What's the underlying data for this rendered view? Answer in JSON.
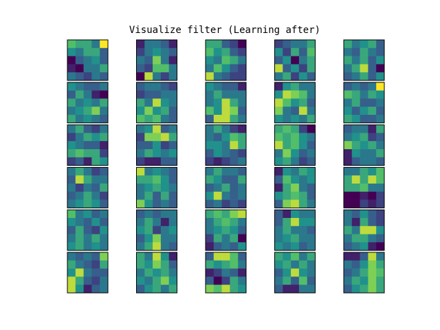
{
  "figure": {
    "title": "Visualize filter (Learning after)"
  },
  "chart_data": {
    "type": "heatmap",
    "title": "Visualize filter (Learning after)",
    "colormap": "viridis",
    "colormap_stops": [
      "#440154",
      "#3b528b",
      "#21918c",
      "#5ec962",
      "#fde725"
    ],
    "grid_shape": [
      6,
      5
    ],
    "filter_shape": [
      5,
      5
    ],
    "value_range": [
      0,
      1
    ],
    "axes_visible": false,
    "filters": [
      [
        [
          0.7,
          0.6,
          0.6,
          0.4,
          1.0
        ],
        [
          0.5,
          0.4,
          0.6,
          0.6,
          0.3
        ],
        [
          0.0,
          0.3,
          0.4,
          0.5,
          0.3
        ],
        [
          0.1,
          0.0,
          0.4,
          0.4,
          0.6
        ],
        [
          0.4,
          0.3,
          0.2,
          0.4,
          0.3
        ]
      ],
      [
        [
          0.1,
          0.4,
          0.4,
          0.3,
          0.1
        ],
        [
          0.2,
          0.4,
          0.5,
          0.4,
          0.3
        ],
        [
          0.4,
          0.3,
          0.8,
          0.4,
          0.1
        ],
        [
          0.3,
          0.2,
          0.7,
          0.7,
          0.4
        ],
        [
          0.0,
          0.9,
          0.4,
          0.2,
          0.4
        ]
      ],
      [
        [
          0.6,
          0.6,
          0.3,
          0.2,
          0.0
        ],
        [
          0.7,
          0.5,
          0.6,
          0.3,
          0.2
        ],
        [
          0.5,
          0.4,
          0.7,
          0.6,
          0.4
        ],
        [
          0.4,
          0.7,
          0.5,
          0.3,
          0.2
        ],
        [
          0.9,
          0.4,
          0.3,
          0.2,
          0.2
        ]
      ],
      [
        [
          0.2,
          0.3,
          0.4,
          0.4,
          0.6
        ],
        [
          0.5,
          0.2,
          0.6,
          0.3,
          0.7
        ],
        [
          0.3,
          0.5,
          0.0,
          0.4,
          0.6
        ],
        [
          0.9,
          0.3,
          0.5,
          0.2,
          0.6
        ],
        [
          0.4,
          0.6,
          0.2,
          0.5,
          0.3
        ]
      ],
      [
        [
          0.6,
          0.4,
          0.5,
          0.6,
          0.3
        ],
        [
          0.4,
          0.3,
          0.6,
          0.4,
          0.3
        ],
        [
          0.6,
          0.4,
          0.6,
          0.3,
          0.5
        ],
        [
          0.4,
          0.6,
          0.9,
          0.3,
          0.0
        ],
        [
          0.3,
          0.4,
          0.6,
          0.3,
          0.5
        ]
      ],
      [
        [
          0.5,
          0.4,
          0.3,
          0.3,
          0.4
        ],
        [
          0.3,
          0.6,
          0.4,
          0.1,
          0.0
        ],
        [
          0.6,
          0.4,
          0.5,
          0.4,
          0.6
        ],
        [
          0.4,
          0.5,
          0.6,
          0.8,
          0.4
        ],
        [
          0.6,
          0.4,
          0.5,
          0.4,
          0.3
        ]
      ],
      [
        [
          0.3,
          0.4,
          0.4,
          0.3,
          0.2
        ],
        [
          0.2,
          0.3,
          0.3,
          0.4,
          0.4
        ],
        [
          0.6,
          0.4,
          0.9,
          0.5,
          0.4
        ],
        [
          0.5,
          0.8,
          0.5,
          0.6,
          0.3
        ],
        [
          0.7,
          0.6,
          0.7,
          0.4,
          0.3
        ]
      ],
      [
        [
          0.5,
          0.4,
          0.3,
          0.3,
          0.1
        ],
        [
          0.4,
          0.6,
          0.4,
          0.4,
          0.4
        ],
        [
          0.4,
          0.5,
          0.9,
          0.6,
          0.4
        ],
        [
          0.7,
          0.5,
          0.9,
          0.8,
          0.3
        ],
        [
          0.3,
          0.9,
          0.9,
          0.6,
          0.4
        ]
      ],
      [
        [
          0.1,
          0.5,
          0.6,
          0.4,
          0.4
        ],
        [
          0.5,
          0.9,
          0.8,
          0.7,
          0.4
        ],
        [
          0.9,
          0.7,
          0.5,
          0.6,
          0.3
        ],
        [
          0.8,
          0.4,
          0.3,
          0.9,
          0.4
        ],
        [
          0.5,
          0.4,
          0.5,
          0.4,
          0.6
        ]
      ],
      [
        [
          0.3,
          0.4,
          0.3,
          0.4,
          1.0
        ],
        [
          0.7,
          0.6,
          0.4,
          0.6,
          0.5
        ],
        [
          0.4,
          0.6,
          0.3,
          0.3,
          0.4
        ],
        [
          0.5,
          0.3,
          0.5,
          0.6,
          0.3
        ],
        [
          0.6,
          0.5,
          0.3,
          0.3,
          0.4
        ]
      ],
      [
        [
          0.4,
          0.6,
          0.3,
          0.2,
          0.4
        ],
        [
          0.2,
          0.4,
          0.6,
          0.5,
          0.6
        ],
        [
          0.5,
          0.4,
          0.3,
          0.3,
          0.1
        ],
        [
          0.6,
          0.7,
          0.6,
          0.6,
          0.2
        ],
        [
          0.2,
          0.3,
          0.1,
          0.6,
          0.5
        ]
      ],
      [
        [
          0.4,
          0.5,
          0.9,
          0.3,
          0.4
        ],
        [
          0.2,
          0.8,
          0.8,
          0.9,
          0.6
        ],
        [
          0.3,
          0.3,
          0.5,
          0.2,
          0.3
        ],
        [
          0.4,
          0.6,
          0.5,
          0.4,
          0.5
        ],
        [
          0.2,
          0.1,
          0.1,
          0.3,
          0.3
        ]
      ],
      [
        [
          0.4,
          0.6,
          0.4,
          0.2,
          0.1
        ],
        [
          0.4,
          0.3,
          0.5,
          0.7,
          0.6
        ],
        [
          0.5,
          0.5,
          0.4,
          0.9,
          0.6
        ],
        [
          0.3,
          0.5,
          0.4,
          0.3,
          0.2
        ],
        [
          0.2,
          0.1,
          0.2,
          0.3,
          0.4
        ]
      ],
      [
        [
          0.6,
          0.7,
          0.6,
          0.2,
          0.0
        ],
        [
          0.7,
          0.6,
          0.7,
          0.5,
          0.4
        ],
        [
          0.9,
          0.6,
          0.7,
          0.5,
          0.3
        ],
        [
          0.4,
          0.8,
          0.5,
          0.3,
          0.4
        ],
        [
          0.5,
          0.6,
          0.4,
          0.2,
          0.3
        ]
      ],
      [
        [
          0.3,
          0.4,
          0.4,
          0.1,
          0.6
        ],
        [
          0.4,
          0.5,
          0.6,
          0.2,
          0.3
        ],
        [
          0.8,
          0.6,
          0.5,
          0.6,
          0.4
        ],
        [
          0.1,
          0.5,
          0.4,
          0.4,
          0.6
        ],
        [
          0.1,
          0.3,
          0.4,
          0.4,
          0.3
        ]
      ],
      [
        [
          0.4,
          0.6,
          0.4,
          0.2,
          0.3
        ],
        [
          0.3,
          0.9,
          0.6,
          0.4,
          0.4
        ],
        [
          0.4,
          0.2,
          0.4,
          0.3,
          0.6
        ],
        [
          0.3,
          0.4,
          0.6,
          0.4,
          0.2
        ],
        [
          0.4,
          0.5,
          0.6,
          0.5,
          0.3
        ]
      ],
      [
        [
          0.9,
          0.4,
          0.5,
          0.4,
          0.3
        ],
        [
          0.6,
          0.6,
          0.7,
          0.5,
          0.3
        ],
        [
          0.4,
          0.5,
          0.6,
          0.5,
          0.4
        ],
        [
          0.4,
          0.6,
          0.3,
          0.6,
          0.3
        ],
        [
          0.8,
          0.5,
          0.3,
          0.4,
          0.3
        ]
      ],
      [
        [
          0.4,
          0.6,
          0.4,
          0.4,
          0.3
        ],
        [
          0.6,
          0.5,
          0.3,
          0.3,
          0.6
        ],
        [
          0.3,
          0.4,
          0.6,
          0.3,
          0.4
        ],
        [
          0.5,
          0.9,
          0.4,
          0.3,
          0.4
        ],
        [
          0.3,
          0.4,
          0.2,
          0.3,
          0.2
        ]
      ],
      [
        [
          0.1,
          0.5,
          0.4,
          0.6,
          0.5
        ],
        [
          0.3,
          0.7,
          0.5,
          0.4,
          0.5
        ],
        [
          0.1,
          0.6,
          0.8,
          0.4,
          0.3
        ],
        [
          0.5,
          0.6,
          0.7,
          0.6,
          0.3
        ],
        [
          0.3,
          0.8,
          0.9,
          0.6,
          0.4
        ]
      ],
      [
        [
          0.4,
          0.4,
          0.6,
          0.5,
          0.7
        ],
        [
          0.6,
          0.9,
          0.6,
          0.9,
          0.7
        ],
        [
          0.6,
          0.6,
          0.7,
          0.4,
          0.4
        ],
        [
          0.0,
          0.0,
          0.1,
          0.0,
          0.2
        ],
        [
          0.0,
          0.0,
          0.2,
          0.1,
          0.2
        ]
      ],
      [
        [
          0.7,
          0.4,
          0.5,
          0.3,
          0.4
        ],
        [
          0.5,
          0.4,
          0.3,
          0.5,
          0.3
        ],
        [
          0.3,
          0.6,
          0.3,
          0.2,
          0.5
        ],
        [
          0.4,
          0.6,
          0.4,
          0.6,
          0.4
        ],
        [
          0.5,
          0.6,
          0.4,
          0.5,
          0.4
        ]
      ],
      [
        [
          0.3,
          0.4,
          0.3,
          0.4,
          0.4
        ],
        [
          0.4,
          0.6,
          0.4,
          0.1,
          0.4
        ],
        [
          0.5,
          0.6,
          0.2,
          0.4,
          0.5
        ],
        [
          0.3,
          0.5,
          0.8,
          0.4,
          0.4
        ],
        [
          0.4,
          0.6,
          0.9,
          0.4,
          0.3
        ]
      ],
      [
        [
          0.6,
          0.7,
          0.6,
          0.8,
          0.9
        ],
        [
          0.4,
          0.6,
          0.7,
          0.6,
          0.4
        ],
        [
          0.4,
          0.5,
          0.6,
          0.5,
          0.3
        ],
        [
          0.2,
          0.6,
          0.4,
          0.6,
          0.0
        ],
        [
          0.1,
          0.3,
          0.4,
          0.3,
          0.5
        ]
      ],
      [
        [
          0.3,
          0.1,
          0.5,
          0.4,
          0.4
        ],
        [
          0.3,
          0.6,
          0.9,
          0.5,
          0.5
        ],
        [
          0.4,
          0.6,
          0.4,
          0.4,
          0.3
        ],
        [
          0.4,
          0.5,
          0.6,
          0.4,
          0.4
        ],
        [
          0.5,
          0.4,
          0.5,
          0.3,
          0.4
        ]
      ],
      [
        [
          0.4,
          0.3,
          0.5,
          0.3,
          0.2
        ],
        [
          0.4,
          0.1,
          0.6,
          0.3,
          0.2
        ],
        [
          0.6,
          0.4,
          0.9,
          0.9,
          0.5
        ],
        [
          0.4,
          0.6,
          0.6,
          0.4,
          0.3
        ],
        [
          0.3,
          0.4,
          0.5,
          0.1,
          0.0
        ]
      ],
      [
        [
          0.4,
          0.3,
          0.4,
          0.3,
          0.8
        ],
        [
          0.6,
          0.4,
          0.3,
          0.2,
          0.6
        ],
        [
          0.5,
          0.9,
          0.4,
          0.3,
          0.3
        ],
        [
          0.9,
          0.6,
          0.3,
          0.2,
          0.4
        ],
        [
          0.9,
          0.5,
          0.1,
          0.3,
          0.4
        ]
      ],
      [
        [
          0.6,
          0.4,
          0.9,
          0.5,
          0.1
        ],
        [
          0.6,
          0.5,
          0.8,
          0.6,
          0.3
        ],
        [
          0.4,
          0.6,
          0.5,
          0.6,
          0.4
        ],
        [
          0.5,
          0.4,
          0.6,
          0.8,
          0.5
        ],
        [
          0.3,
          0.5,
          0.6,
          0.4,
          0.6
        ]
      ],
      [
        [
          0.3,
          0.9,
          0.9,
          0.7,
          0.3
        ],
        [
          0.6,
          0.5,
          0.6,
          0.7,
          0.4
        ],
        [
          0.1,
          0.2,
          0.4,
          0.3,
          0.1
        ],
        [
          0.3,
          0.0,
          0.2,
          0.6,
          0.4
        ],
        [
          0.8,
          0.7,
          0.9,
          0.6,
          0.5
        ]
      ],
      [
        [
          0.6,
          0.5,
          0.7,
          0.4,
          0.6
        ],
        [
          0.5,
          0.6,
          0.4,
          0.6,
          0.4
        ],
        [
          0.3,
          0.5,
          0.9,
          0.5,
          0.4
        ],
        [
          0.4,
          0.6,
          0.3,
          0.7,
          0.3
        ],
        [
          0.3,
          0.1,
          0.1,
          0.4,
          0.4
        ]
      ],
      [
        [
          0.1,
          0.1,
          0.3,
          0.9,
          0.4
        ],
        [
          0.4,
          0.3,
          0.5,
          0.8,
          0.6
        ],
        [
          0.3,
          0.4,
          0.6,
          0.8,
          0.7
        ],
        [
          0.4,
          0.6,
          0.5,
          0.8,
          0.6
        ],
        [
          0.3,
          0.5,
          0.6,
          0.8,
          0.6
        ]
      ]
    ]
  }
}
